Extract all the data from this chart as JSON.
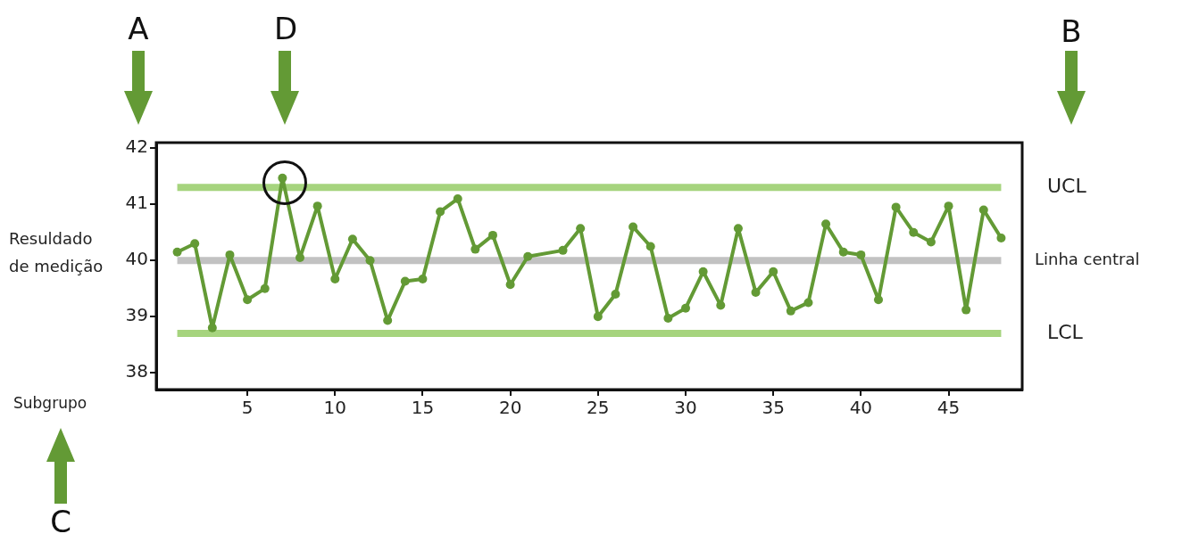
{
  "chart_data": {
    "type": "line",
    "xlabel": "Subgrupo",
    "ylabel": "Resuldado de medição",
    "x": [
      1,
      2,
      3,
      4,
      5,
      6,
      7,
      8,
      9,
      10,
      11,
      12,
      13,
      14,
      15,
      16,
      17,
      18,
      19,
      20,
      21,
      23,
      24,
      25,
      26,
      27,
      28,
      29,
      30,
      31,
      32,
      33,
      34,
      35,
      36,
      37,
      38,
      39,
      40,
      41,
      42,
      43,
      44,
      45,
      46,
      47,
      48
    ],
    "series": [
      {
        "color": "#639a35",
        "values": [
          40.15,
          40.3,
          38.8,
          40.1,
          39.3,
          39.5,
          41.47,
          40.05,
          40.97,
          39.67,
          40.38,
          40.0,
          38.93,
          39.63,
          39.67,
          40.87,
          41.1,
          40.2,
          40.45,
          39.57,
          40.07,
          40.18,
          40.57,
          39.0,
          39.4,
          40.6,
          40.25,
          38.97,
          39.15,
          39.8,
          39.2,
          40.57,
          39.43,
          39.8,
          39.1,
          39.25,
          40.65,
          40.15,
          40.1,
          39.3,
          40.95,
          40.5,
          40.33,
          40.97,
          39.12,
          40.9,
          40.4
        ]
      }
    ],
    "xlim": [
      -0.2,
      49.2
    ],
    "xticks": [
      5,
      10,
      15,
      20,
      25,
      30,
      35,
      40,
      45
    ],
    "ylim": [
      37.7,
      42.1
    ],
    "yticks": [
      38,
      39,
      40,
      41,
      42
    ],
    "ref_lines": [
      {
        "axis": "y",
        "value": 41.3,
        "label": "UCL",
        "color": "#a6d47e"
      },
      {
        "axis": "y",
        "value": 40,
        "label": "Linha central",
        "color": "#c2c2c2"
      },
      {
        "axis": "y",
        "value": 38.7,
        "label": "LCL",
        "color": "#a6d47e"
      }
    ],
    "annotations": [
      "A",
      "B",
      "C",
      "D"
    ],
    "grid": false,
    "legend": false,
    "marker": "circle",
    "line_style": "solid"
  }
}
